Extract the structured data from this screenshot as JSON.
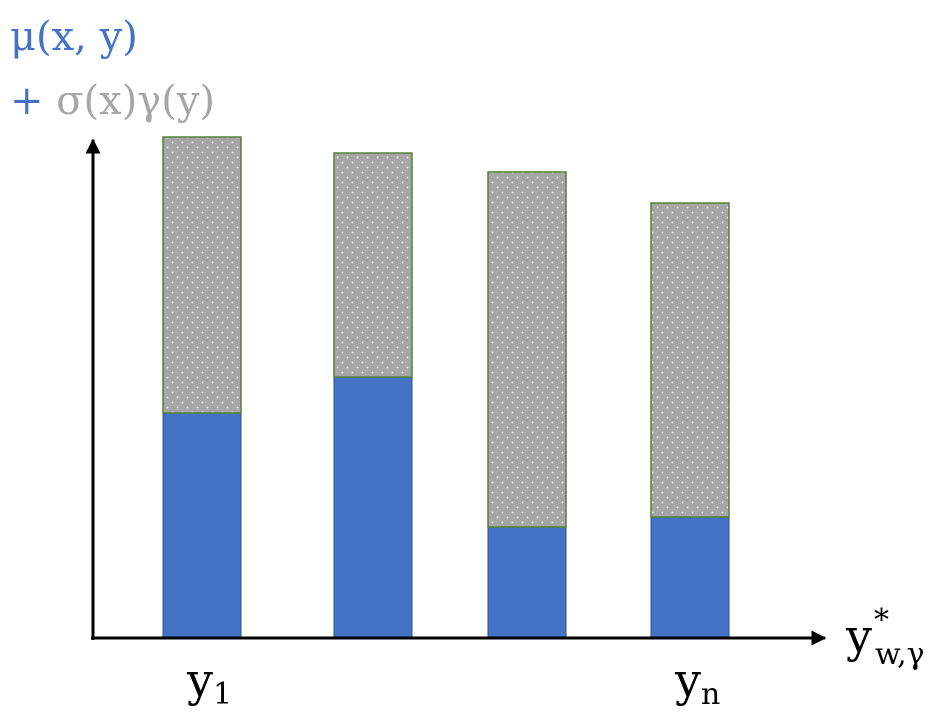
{
  "chart_data": {
    "type": "bar",
    "stacked": true,
    "ylabel_line1": "μ(x, y)",
    "ylabel_line2_prefix": "+ ",
    "ylabel_line2": "σ(x)γ(y)",
    "xlabel_main": "y",
    "xlabel_sup": "*",
    "xlabel_sub": "w,γ",
    "categories": [
      "y_1",
      "",
      "",
      "y_n"
    ],
    "tick_labels": [
      {
        "base": "y",
        "sub": "1"
      },
      {
        "base": "",
        "sub": ""
      },
      {
        "base": "",
        "sub": ""
      },
      {
        "base": "y",
        "sub": "n"
      }
    ],
    "ylim": [
      0,
      100
    ],
    "grid": false,
    "series": [
      {
        "name": "μ(x, y)",
        "color": "#4472c4",
        "values": [
          44.8,
          52,
          22,
          24
        ]
      },
      {
        "name": "σ(x)γ(y)",
        "color": "#a6a6a6",
        "values": [
          55.2,
          44.8,
          71,
          62.8
        ]
      }
    ]
  }
}
